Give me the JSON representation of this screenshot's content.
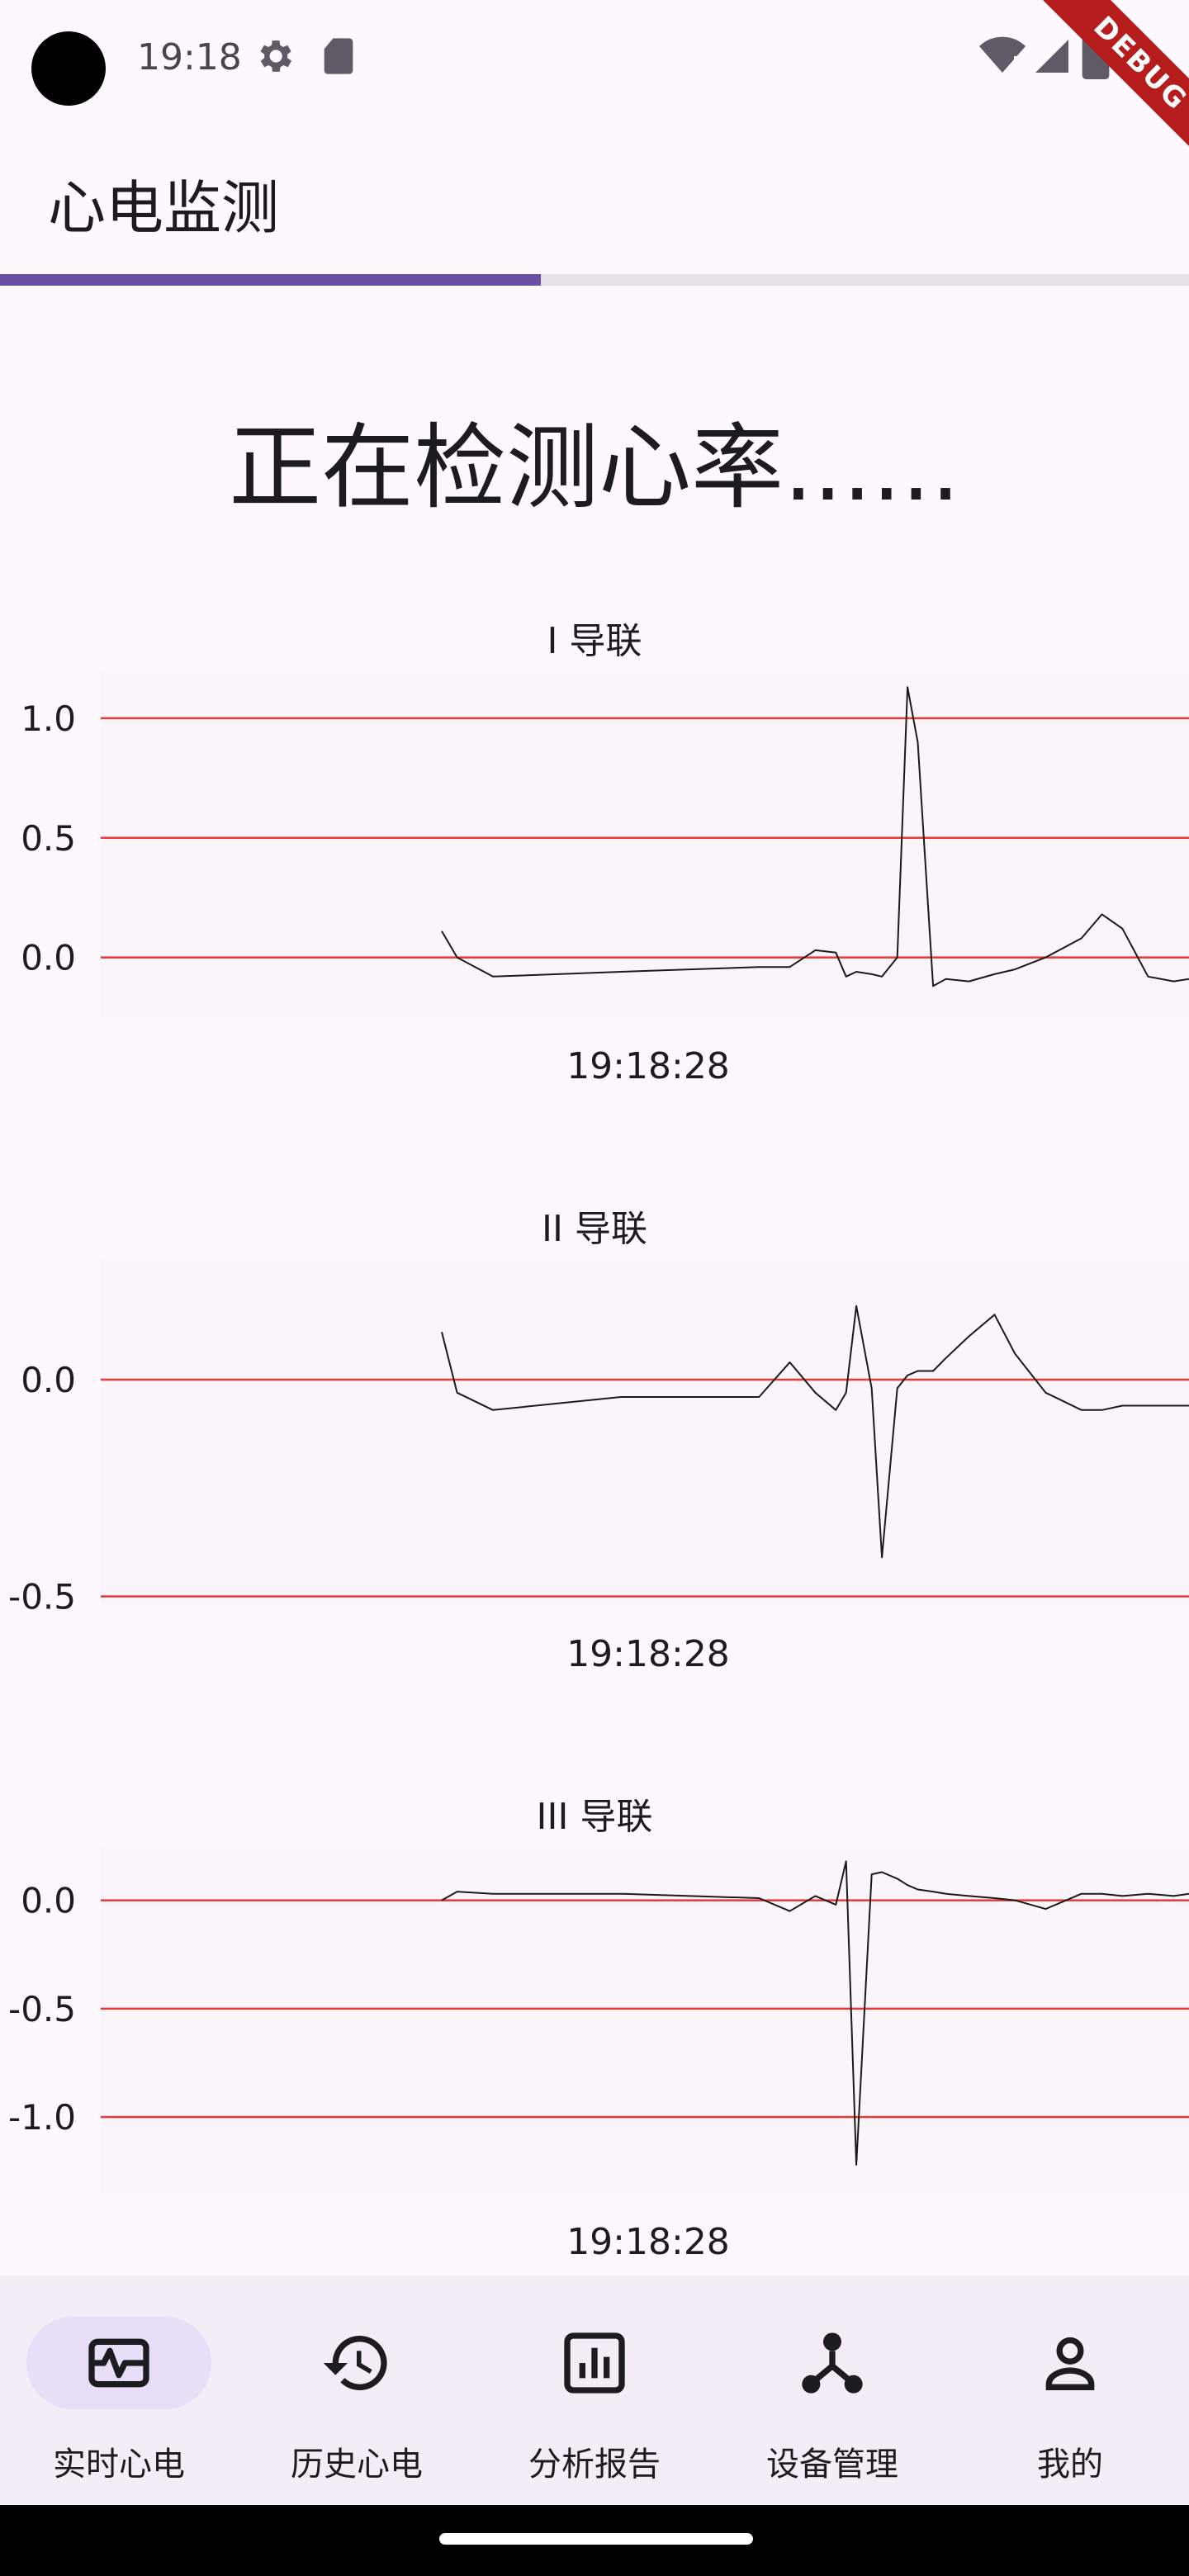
{
  "status_bar": {
    "time": "19:18",
    "icons": [
      "settings-icon",
      "sd-card-icon",
      "wifi-icon",
      "signal-icon",
      "battery-icon"
    ]
  },
  "debug_banner": "DEBUG",
  "app_bar": {
    "title": "心电监测"
  },
  "progress": {
    "fraction": 0.455,
    "color": "#6750a4"
  },
  "headline": "正在检测心率......",
  "colors": {
    "gridline": "#e53935",
    "trace": "#1a1a1a",
    "accent": "#6750a4",
    "nav_bg": "#f3edf7",
    "active_pill": "#e8def8"
  },
  "charts": [
    {
      "title": "I 导联",
      "time": "19:18:28",
      "tick_labels": [
        "1.0",
        "0.5",
        "0.0"
      ]
    },
    {
      "title": "II 导联",
      "time": "19:18:28",
      "tick_labels": [
        "0.0",
        "-0.5"
      ]
    },
    {
      "title": "III 导联",
      "time": "19:18:28",
      "tick_labels": [
        "0.0",
        "-0.5",
        "-1.0"
      ]
    }
  ],
  "chart_data": [
    {
      "type": "line",
      "title": "I 导联",
      "xlabel": "19:18:28",
      "ylabel": "",
      "ylim": [
        -0.25,
        1.2
      ],
      "yticks": [
        1.0,
        0.5,
        0.0
      ],
      "grid": true,
      "series": [
        {
          "x": [
            0,
            0.03,
            0.1,
            0.35,
            0.62,
            0.68,
            0.73,
            0.77,
            0.79,
            0.81,
            0.84,
            0.86,
            0.89,
            0.91,
            0.93,
            0.96,
            0.985,
            1.03,
            1.08,
            1.12,
            1.18,
            1.25,
            1.29,
            1.33,
            1.38,
            1.43,
            1.46
          ],
          "y": [
            0.11,
            0.0,
            -0.08,
            -0.06,
            -0.04,
            -0.04,
            0.03,
            0.02,
            -0.08,
            -0.06,
            -0.07,
            -0.08,
            0.0,
            1.13,
            0.9,
            -0.12,
            -0.09,
            -0.1,
            -0.07,
            -0.05,
            0.0,
            0.08,
            0.18,
            0.12,
            -0.08,
            -0.1,
            -0.09
          ]
        }
      ]
    },
    {
      "type": "line",
      "title": "II 导联",
      "xlabel": "19:18:28",
      "ylabel": "",
      "ylim": [
        -0.52,
        0.28
      ],
      "yticks": [
        0.0,
        -0.5
      ],
      "grid": true,
      "series": [
        {
          "x": [
            0,
            0.03,
            0.1,
            0.35,
            0.62,
            0.68,
            0.73,
            0.77,
            0.79,
            0.81,
            0.84,
            0.86,
            0.89,
            0.91,
            0.93,
            0.96,
            0.985,
            1.03,
            1.08,
            1.12,
            1.18,
            1.25,
            1.29,
            1.33,
            1.38,
            1.43,
            1.46
          ],
          "y": [
            0.11,
            -0.03,
            -0.07,
            -0.04,
            -0.04,
            0.04,
            -0.03,
            -0.07,
            -0.03,
            0.17,
            -0.02,
            -0.41,
            -0.02,
            0.01,
            0.02,
            0.02,
            0.05,
            0.1,
            0.15,
            0.06,
            -0.03,
            -0.07,
            -0.07,
            -0.06,
            -0.06,
            -0.06,
            -0.06
          ]
        }
      ]
    },
    {
      "type": "line",
      "title": "III 导联",
      "xlabel": "19:18:28",
      "ylabel": "",
      "ylim": [
        -1.35,
        0.25
      ],
      "yticks": [
        0.0,
        -0.5,
        -1.0
      ],
      "grid": true,
      "series": [
        {
          "x": [
            0,
            0.03,
            0.1,
            0.35,
            0.62,
            0.68,
            0.73,
            0.77,
            0.79,
            0.81,
            0.84,
            0.86,
            0.89,
            0.91,
            0.93,
            0.96,
            0.985,
            1.03,
            1.08,
            1.12,
            1.18,
            1.25,
            1.29,
            1.33,
            1.38,
            1.43,
            1.46
          ],
          "y": [
            0.0,
            0.04,
            0.03,
            0.03,
            0.01,
            -0.05,
            0.02,
            -0.02,
            0.18,
            -1.22,
            0.12,
            0.13,
            0.1,
            0.07,
            0.05,
            0.04,
            0.03,
            0.02,
            0.01,
            0.0,
            -0.04,
            0.03,
            0.03,
            0.02,
            0.03,
            0.02,
            0.03
          ]
        }
      ]
    }
  ],
  "bottom_nav": {
    "active_index": 0,
    "items": [
      {
        "label": "实时心电",
        "icon": "monitor-heart-icon"
      },
      {
        "label": "历史心电",
        "icon": "history-icon"
      },
      {
        "label": "分析报告",
        "icon": "bar-chart-icon"
      },
      {
        "label": "设备管理",
        "icon": "device-hub-icon"
      },
      {
        "label": "我的",
        "icon": "person-icon"
      }
    ]
  }
}
